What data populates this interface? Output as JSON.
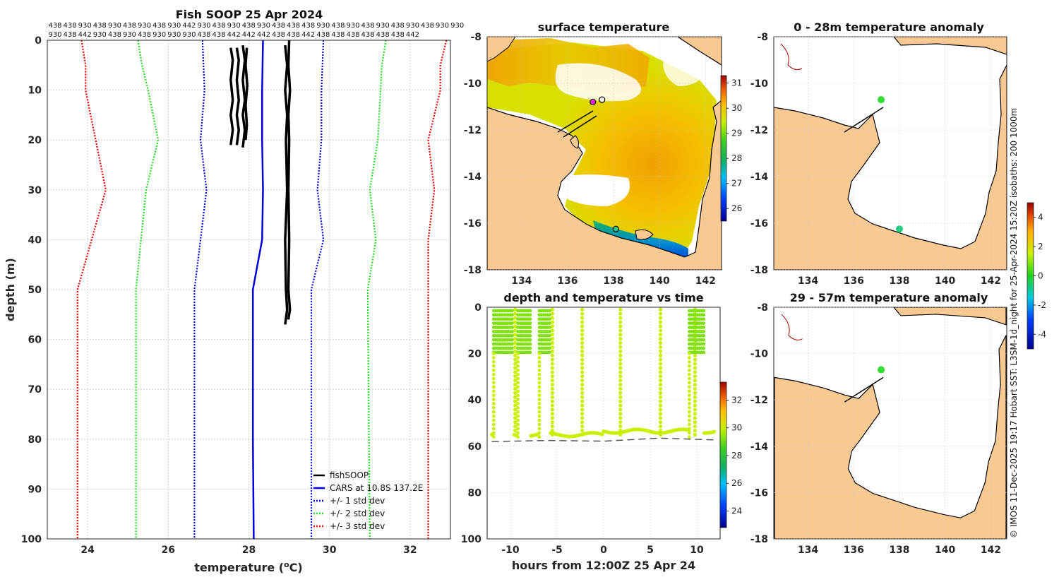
{
  "chart_data": [
    {
      "type": "line",
      "title": "Fish SOOP 25 Apr 2024",
      "xlabel": "temperature (",
      "xlabel_sup": "o",
      "xlabel_end": "C)",
      "ylabel": "depth (m)",
      "xlim": [
        23,
        33
      ],
      "ylim": [
        100,
        0
      ],
      "xticks": [
        24,
        26,
        28,
        30,
        32
      ],
      "yticks": [
        0,
        10,
        20,
        30,
        40,
        50,
        60,
        70,
        80,
        90,
        100
      ],
      "top_labels_row1": [
        "438",
        "438",
        "930",
        "438",
        "930",
        "438",
        "930",
        "438",
        "930",
        "442",
        "930",
        "438",
        "930",
        "438",
        "930",
        "438",
        "438",
        "438",
        "930",
        "438",
        "930",
        "438",
        "930",
        "438",
        "930",
        "438",
        "930",
        "930"
      ],
      "top_labels_row2": [
        "930",
        "438",
        "442",
        "930",
        "438",
        "930",
        "438",
        "930",
        "930",
        "930",
        "438",
        "438",
        "442",
        "442",
        "442",
        "438",
        "438",
        "442",
        "438",
        "438",
        "438",
        "438",
        "438",
        "438",
        "442"
      ],
      "series": [
        {
          "name": "fishSOOP",
          "color": "#000000",
          "style": "solid",
          "profiles": [
            {
              "x": [
                27.55,
                27.6,
                27.55,
                27.6,
                27.55,
                27.6,
                27.55
              ],
              "y": [
                1.5,
                4,
                8,
                12,
                15,
                18,
                21
              ]
            },
            {
              "x": [
                27.7,
                27.75,
                27.7,
                27.75,
                27.7,
                27.75,
                27.7
              ],
              "y": [
                1.5,
                4,
                8,
                12,
                15,
                18,
                21
              ]
            },
            {
              "x": [
                27.85,
                27.9,
                27.85,
                27.9,
                27.85,
                27.9,
                27.85
              ],
              "y": [
                1,
                4,
                8,
                12,
                15,
                18,
                21.5
              ]
            },
            {
              "x": [
                27.95,
                27.92,
                27.96,
                27.92,
                27.95,
                27.92
              ],
              "y": [
                1.5,
                5,
                9,
                13,
                17,
                20
              ]
            },
            {
              "x": [
                28.9,
                28.95,
                28.9,
                28.95,
                28.92,
                28.95,
                28.9,
                28.92,
                28.95,
                28.9
              ],
              "y": [
                1,
                5,
                10,
                15,
                20,
                30,
                40,
                50,
                54,
                57
              ]
            },
            {
              "x": [
                29.0,
                28.98,
                29.02,
                28.98,
                29.0,
                28.98,
                29.0,
                28.98,
                29.02,
                28.98
              ],
              "y": [
                0,
                5,
                10,
                15,
                20,
                30,
                40,
                50,
                54,
                56
              ]
            }
          ]
        },
        {
          "name": "CARS at 10.8S 137.2E",
          "color": "#0000dd",
          "style": "solid",
          "x": [
            28.35,
            28.33,
            28.33,
            28.35,
            28.33,
            28.1,
            28.1,
            28.12
          ],
          "y": [
            0,
            10,
            20,
            30,
            40,
            50,
            80,
            100
          ]
        },
        {
          "name": "+/- 1 std dev",
          "color": "#0000dd",
          "style": "dotted",
          "lower": {
            "x": [
              26.85,
              26.9,
              26.8,
              26.95,
              26.8,
              26.65,
              26.65
            ],
            "y": [
              0,
              10,
              20,
              30,
              40,
              50,
              100
            ]
          },
          "upper": {
            "x": [
              29.85,
              29.8,
              29.8,
              29.7,
              29.85,
              29.55,
              29.55
            ],
            "y": [
              0,
              10,
              20,
              30,
              40,
              50,
              100
            ]
          }
        },
        {
          "name": "+/- 2 std dev",
          "color": "#22dd22",
          "style": "dotted",
          "lower": {
            "x": [
              25.25,
              25.35,
              25.5,
              25.75,
              25.45,
              25.2,
              25.2
            ],
            "y": [
              0,
              5,
              10,
              20,
              30,
              50,
              100
            ]
          },
          "upper": {
            "x": [
              31.4,
              31.3,
              31.2,
              31.0,
              31.15,
              30.95,
              31.0
            ],
            "y": [
              0,
              5,
              20,
              30,
              40,
              50,
              100
            ]
          }
        },
        {
          "name": "+/- 3 std dev",
          "color": "#ee0000",
          "style": "dotted",
          "lower": {
            "x": [
              23.85,
              23.95,
              23.95,
              24.2,
              24.45,
              23.75,
              23.75
            ],
            "y": [
              0,
              5,
              10,
              20,
              30,
              50,
              100
            ]
          },
          "upper": {
            "x": [
              32.9,
              32.75,
              32.75,
              32.45,
              32.6,
              32.45,
              32.45
            ],
            "y": [
              0,
              5,
              10,
              20,
              30,
              40,
              100
            ]
          }
        }
      ],
      "legend_position": "bottom-right"
    },
    {
      "type": "heatmap",
      "title": "surface temperature",
      "xlim": [
        132.5,
        142.7
      ],
      "ylim": [
        -18,
        -8
      ],
      "xticks": [
        134,
        136,
        138,
        140,
        142
      ],
      "yticks": [
        -8,
        -10,
        -12,
        -14,
        -16,
        -18
      ],
      "colorbar": {
        "min": 25.5,
        "max": 31.3,
        "ticks": [
          26,
          27,
          28,
          29,
          30,
          31
        ]
      },
      "markers": [
        {
          "lon": 137.1,
          "lat": -10.8,
          "color": "#ff00ff"
        },
        {
          "lon": 137.5,
          "lat": -10.7,
          "color": "#ffffff"
        },
        {
          "lon": 138.1,
          "lat": -16.25,
          "color": "#22cc88"
        }
      ]
    },
    {
      "type": "heatmap",
      "title": "0 - 28m temperature anomaly",
      "xlim": [
        132.5,
        142.7
      ],
      "ylim": [
        -18,
        -8
      ],
      "xticks": [
        134,
        136,
        138,
        140,
        142
      ],
      "yticks": [
        -8,
        -10,
        -12,
        -14,
        -16,
        -18
      ],
      "points": [
        {
          "lon": 137.2,
          "lat": -10.7,
          "anomaly": 0.3
        },
        {
          "lon": 138.0,
          "lat": -16.25,
          "anomaly": -0.6
        }
      ]
    },
    {
      "type": "heatmap",
      "title": "29 - 57m temperature anomaly",
      "xlim": [
        132.5,
        142.7
      ],
      "ylim": [
        -18,
        -8
      ],
      "xticks": [
        134,
        136,
        138,
        140,
        142
      ],
      "yticks": [
        -8,
        -10,
        -12,
        -14,
        -16,
        -18
      ],
      "points": [
        {
          "lon": 137.2,
          "lat": -10.7,
          "anomaly": 0.3
        }
      ]
    },
    {
      "type": "scatter",
      "title": "depth and temperature vs time",
      "xlabel": "hours from 12:00Z 25 Apr 24",
      "xlim": [
        -12.5,
        12.5
      ],
      "ylim": [
        100,
        0
      ],
      "xticks": [
        -10,
        -5,
        0,
        5,
        10
      ],
      "xtick_labels": [
        "-10",
        "-5",
        "0",
        "5",
        "10"
      ],
      "yticks": [
        0,
        20,
        40,
        60,
        80,
        100
      ],
      "colorbar": {
        "min": 22.8,
        "max": 33.3,
        "ticks": [
          24,
          26,
          28,
          30,
          32
        ]
      },
      "bottom_depth": {
        "x": [
          -12.0,
          -6.0,
          0.0,
          6.0,
          12.0
        ],
        "y": [
          58,
          57.5,
          57.8,
          56.5,
          57.3
        ]
      },
      "shallow_blocks": [
        {
          "x0": -11.8,
          "x1": -9.6,
          "temp": 28.3
        },
        {
          "x0": -9.2,
          "x1": -7.8,
          "temp": 28.6
        },
        {
          "x0": -6.9,
          "x1": -5.8,
          "temp": 28.4
        },
        {
          "x0": 9.2,
          "x1": 10.8,
          "temp": 28.4
        }
      ],
      "deep_dives": [
        {
          "x": -9.5,
          "temp": 29.2
        },
        {
          "x": -5.5,
          "temp": 29.2
        },
        {
          "x": -2.3,
          "temp": 29.3
        },
        {
          "x": 1.8,
          "temp": 29.4
        },
        {
          "x": 6.1,
          "temp": 29.4
        },
        {
          "x": 9.8,
          "temp": 29.3
        }
      ]
    }
  ],
  "credit": "© IMOS 11-Dec-2025 19:17 Hobart SST: L3SM-1d_night for 25-Apr-2024 15:20Z isobaths: 200  1000m",
  "colors": {
    "land": "#f9c993",
    "coast": "#000000"
  }
}
